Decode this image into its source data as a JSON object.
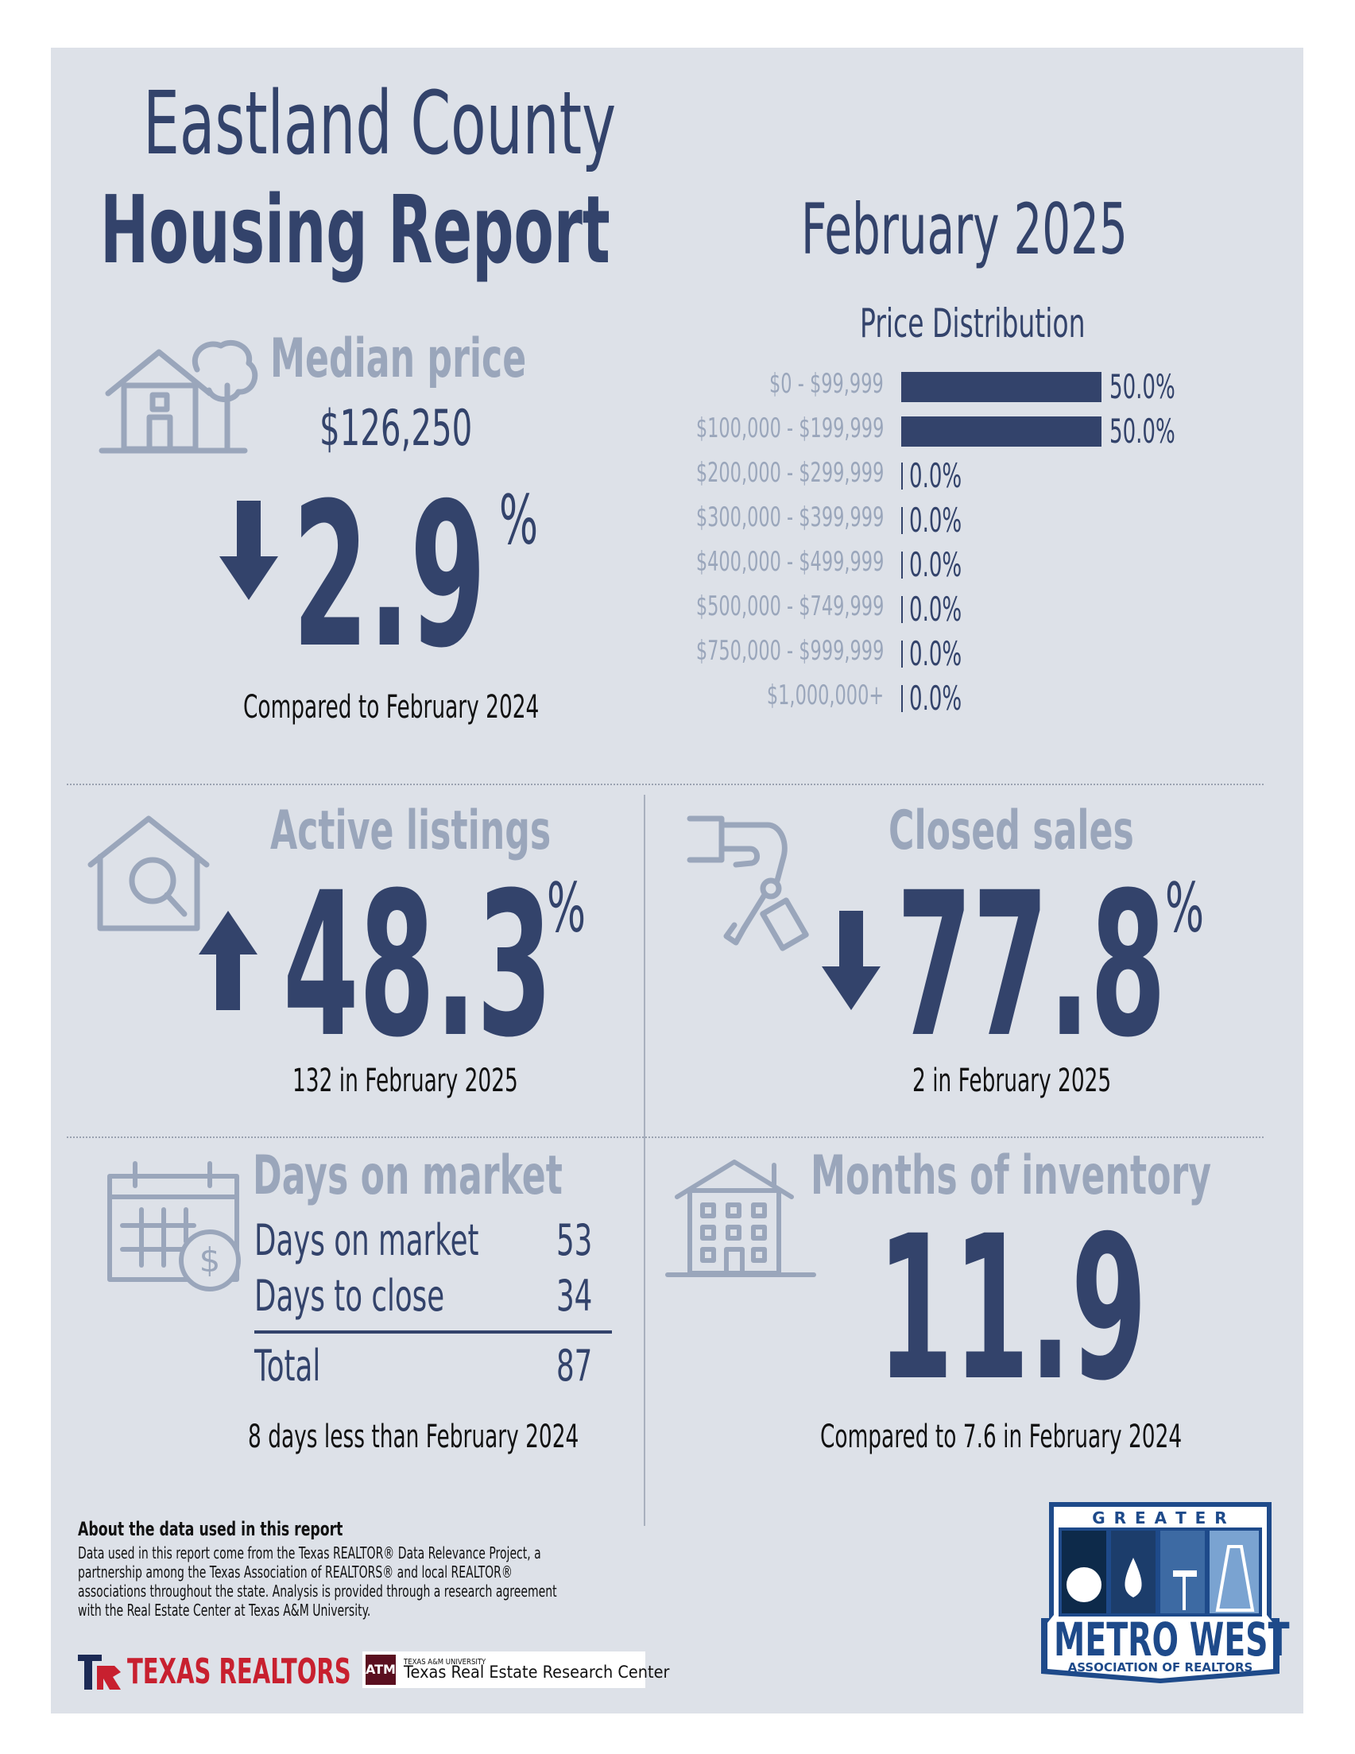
{
  "header": {
    "county": "Eastland County",
    "report": "Housing Report",
    "period": "February 2025"
  },
  "median_price": {
    "label": "Median price",
    "value": "$126,250",
    "direction": "down",
    "change": "2.9",
    "unit": "%",
    "comparison": "Compared to February 2024"
  },
  "price_distribution": {
    "title": "Price Distribution",
    "rows": [
      {
        "range": "$0 - $99,999",
        "pct": "50.0%",
        "value": 50.0
      },
      {
        "range": "$100,000 - $199,999",
        "pct": "50.0%",
        "value": 50.0
      },
      {
        "range": "$200,000 - $299,999",
        "pct": "0.0%",
        "value": 0
      },
      {
        "range": "$300,000 - $399,999",
        "pct": "0.0%",
        "value": 0
      },
      {
        "range": "$400,000 - $499,999",
        "pct": "0.0%",
        "value": 0
      },
      {
        "range": "$500,000 - $749,999",
        "pct": "0.0%",
        "value": 0
      },
      {
        "range": "$750,000 - $999,999",
        "pct": "0.0%",
        "value": 0
      },
      {
        "range": "$1,000,000+",
        "pct": "0.0%",
        "value": 0
      }
    ]
  },
  "active_listings": {
    "label": "Active listings",
    "direction": "up",
    "change": "48.3",
    "unit": "%",
    "detail": "132 in February 2025"
  },
  "closed_sales": {
    "label": "Closed sales",
    "direction": "down",
    "change": "77.8",
    "unit": "%",
    "detail": "2 in February 2025"
  },
  "days_on_market": {
    "label": "Days on market",
    "rows": [
      {
        "name": "Days on market",
        "value": "53"
      },
      {
        "name": "Days to close",
        "value": "34"
      }
    ],
    "total_label": "Total",
    "total_value": "87",
    "comparison": "8 days less than February 2024"
  },
  "months_inventory": {
    "label": "Months of inventory",
    "value": "11.9",
    "comparison": "Compared to 7.6 in February 2024"
  },
  "footer": {
    "about_title": "About the data used in this report",
    "about_text_1": "Data used in this report come from the Texas REALTOR® Data Relevance Project, a",
    "about_text_2": "partnership among the Texas Association of REALTORS® and local REALTOR®",
    "about_text_3": "associations throughout the state. Analysis is provided through a research agreement",
    "about_text_4": "with the Real Estate Center at Texas A&M University.",
    "texas_realtors": "TEXAS REALTORS",
    "tamu_small": "TEXAS A&M UNIVERSITY",
    "tamu_center": "Texas Real Estate Research Center"
  },
  "logo": {
    "top": "G R E A T E R",
    "main": "METRO WEST",
    "sub": "ASSOCIATION OF REALTORS"
  },
  "colors": {
    "navy": "#33436b",
    "grey": "#9aa6bb",
    "background": "#dde1e8"
  }
}
